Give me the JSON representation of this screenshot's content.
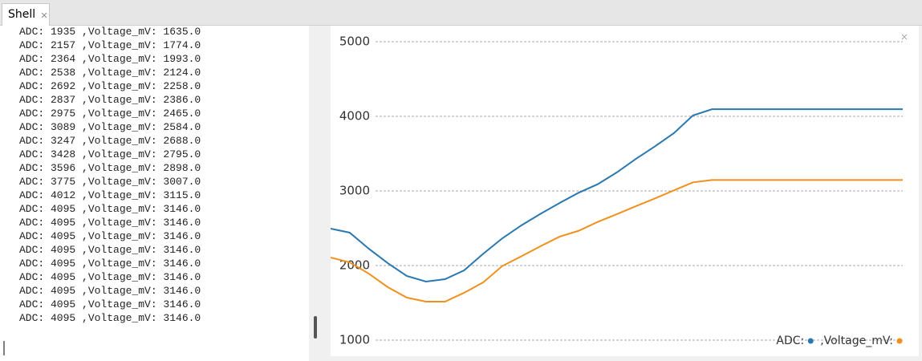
{
  "tab": {
    "title": "Shell"
  },
  "shell": {
    "lines": [
      "ADC: 1935 ,Voltage_mV: 1635.0",
      "ADC: 2157 ,Voltage_mV: 1774.0",
      "ADC: 2364 ,Voltage_mV: 1993.0",
      "ADC: 2538 ,Voltage_mV: 2124.0",
      "ADC: 2692 ,Voltage_mV: 2258.0",
      "ADC: 2837 ,Voltage_mV: 2386.0",
      "ADC: 2975 ,Voltage_mV: 2465.0",
      "ADC: 3089 ,Voltage_mV: 2584.0",
      "ADC: 3247 ,Voltage_mV: 2688.0",
      "ADC: 3428 ,Voltage_mV: 2795.0",
      "ADC: 3596 ,Voltage_mV: 2898.0",
      "ADC: 3775 ,Voltage_mV: 3007.0",
      "ADC: 4012 ,Voltage_mV: 3115.0",
      "ADC: 4095 ,Voltage_mV: 3146.0",
      "ADC: 4095 ,Voltage_mV: 3146.0",
      "ADC: 4095 ,Voltage_mV: 3146.0",
      "ADC: 4095 ,Voltage_mV: 3146.0",
      "ADC: 4095 ,Voltage_mV: 3146.0",
      "ADC: 4095 ,Voltage_mV: 3146.0",
      "ADC: 4095 ,Voltage_mV: 3146.0",
      "ADC: 4095 ,Voltage_mV: 3146.0",
      "ADC: 4095 ,Voltage_mV: 3146.0"
    ]
  },
  "chart_data": {
    "type": "line",
    "series": [
      {
        "name": "ADC:",
        "color": "#2a78b0",
        "values": [
          2495,
          2441,
          2226,
          2032,
          1860,
          1785,
          1817,
          1935,
          2157,
          2364,
          2538,
          2692,
          2837,
          2975,
          3089,
          3247,
          3428,
          3596,
          3775,
          4012,
          4095,
          4095,
          4095,
          4095,
          4095,
          4095,
          4095,
          4095,
          4095,
          4095,
          4095
        ]
      },
      {
        "name": ",Voltage_mV:",
        "color": "#f0901e",
        "values": [
          2108,
          2043,
          1892,
          1710,
          1570,
          1516,
          1516,
          1635,
          1774,
          1993,
          2124,
          2258,
          2386,
          2465,
          2584,
          2688,
          2795,
          2898,
          3007,
          3115,
          3146,
          3146,
          3146,
          3146,
          3146,
          3146,
          3146,
          3146,
          3146,
          3146,
          3146
        ]
      }
    ],
    "ylim": [
      785,
      5215
    ],
    "yticks": [
      1000,
      2000,
      3000,
      4000,
      5000
    ],
    "grid": true,
    "legend": "bottom-right"
  }
}
